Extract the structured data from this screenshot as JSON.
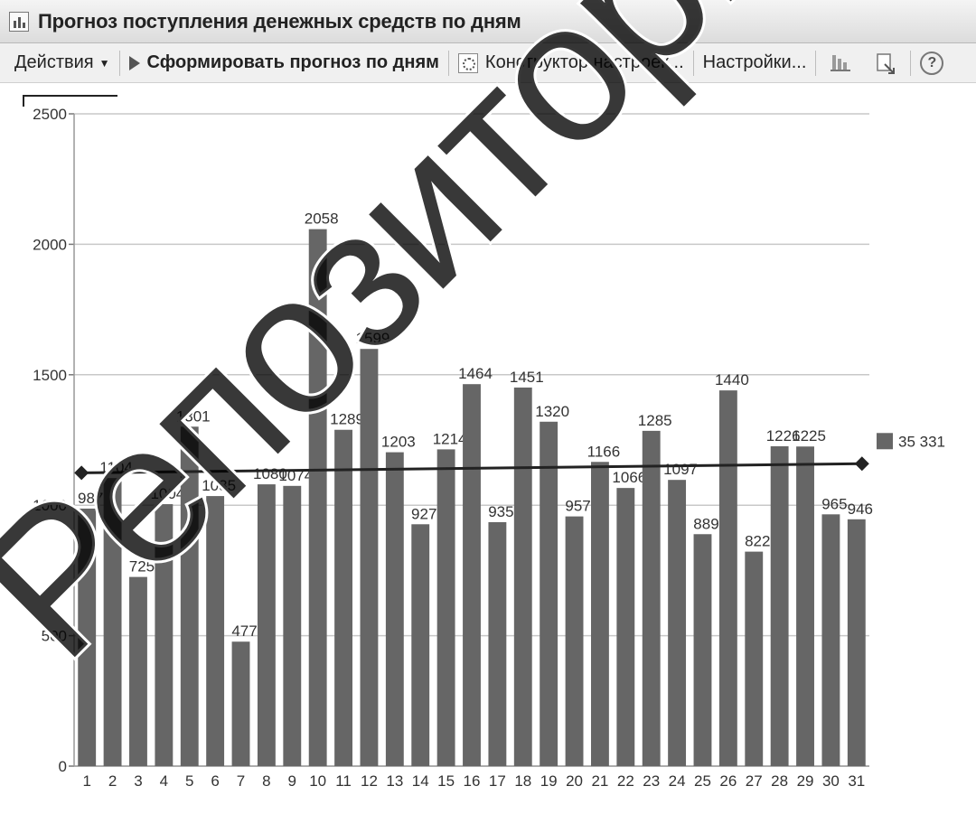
{
  "window": {
    "title": "Прогноз поступления денежных средств по дням"
  },
  "toolbar": {
    "actions_label": "Действия",
    "generate_label": "Сформировать прогноз по дням",
    "constructor_label": "Конструктор настроек...",
    "settings_label": "Настройки...",
    "help_label": "?"
  },
  "watermark": {
    "text": "Репозиторий БГ"
  },
  "chart_data": {
    "type": "bar",
    "categories": [
      "1",
      "2",
      "3",
      "4",
      "5",
      "6",
      "7",
      "8",
      "9",
      "10",
      "11",
      "12",
      "13",
      "14",
      "15",
      "16",
      "17",
      "18",
      "19",
      "20",
      "21",
      "22",
      "23",
      "24",
      "25",
      "26",
      "27",
      "28",
      "29",
      "30",
      "31"
    ],
    "series": [
      {
        "values": [
          987,
          1104,
          725,
          1004,
          1301,
          1035,
          477,
          1080,
          1074,
          2058,
          1289,
          1599,
          1203,
          927,
          1214,
          1464,
          935,
          1451,
          1320,
          957,
          1166,
          1066,
          1285,
          1097,
          889,
          1440,
          822,
          1226,
          1225,
          965,
          946
        ]
      }
    ],
    "trend_line": {
      "start_value": 1124,
      "end_value": 1159
    },
    "legend": {
      "label": "35 331",
      "position": "right"
    },
    "yticks": [
      "0",
      "500",
      "1000",
      "1500",
      "2000",
      "2500"
    ],
    "ylim": [
      0,
      2500
    ],
    "grid": true,
    "colors": {
      "bar": "#666666",
      "trend": "#222222",
      "grid": "#c8c8c8"
    }
  }
}
